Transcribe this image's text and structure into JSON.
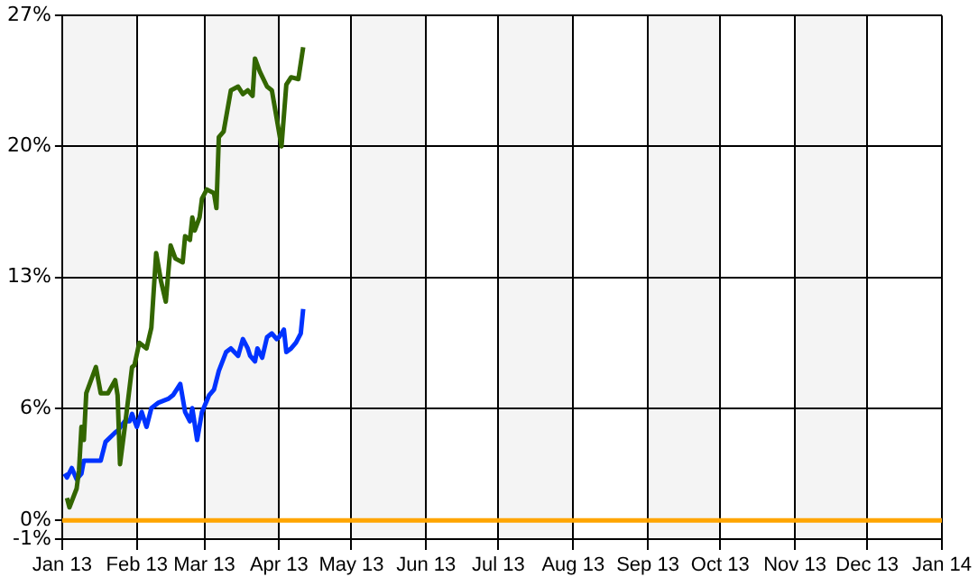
{
  "chart_data": {
    "type": "line",
    "xlim": [
      "2013-01-01",
      "2014-01-01"
    ],
    "xticks": [
      {
        "value": "2013-01-01",
        "label": "Jan 13"
      },
      {
        "value": "2013-02-01",
        "label": "Feb 13"
      },
      {
        "value": "2013-03-01",
        "label": "Mar 13"
      },
      {
        "value": "2013-04-01",
        "label": "Apr 13"
      },
      {
        "value": "2013-05-01",
        "label": "May 13"
      },
      {
        "value": "2013-06-01",
        "label": "Jun 13"
      },
      {
        "value": "2013-07-01",
        "label": "Jul 13"
      },
      {
        "value": "2013-08-01",
        "label": "Aug 13"
      },
      {
        "value": "2013-09-01",
        "label": "Sep 13"
      },
      {
        "value": "2013-10-01",
        "label": "Oct 13"
      },
      {
        "value": "2013-11-01",
        "label": "Nov 13"
      },
      {
        "value": "2013-12-01",
        "label": "Dec 13"
      },
      {
        "value": "2014-01-01",
        "label": "Jan 14"
      }
    ],
    "ylim": [
      -1,
      27
    ],
    "yticks": [
      {
        "value": -1,
        "label": "-1%"
      },
      {
        "value": 0,
        "label": "0%"
      },
      {
        "value": 6,
        "label": "6%"
      },
      {
        "value": 13,
        "label": "13%"
      },
      {
        "value": 20,
        "label": "20%"
      },
      {
        "value": 27,
        "label": "27%"
      }
    ],
    "grid": true,
    "legend": false,
    "marker": "none",
    "line_style": "solid",
    "bands": [
      {
        "axis": "x",
        "from": "2013-01-01",
        "to": "2013-02-01",
        "color": "#f4f4f4"
      },
      {
        "axis": "x",
        "from": "2013-03-01",
        "to": "2013-04-01",
        "color": "#f4f4f4"
      },
      {
        "axis": "x",
        "from": "2013-05-01",
        "to": "2013-06-01",
        "color": "#f4f4f4"
      },
      {
        "axis": "x",
        "from": "2013-07-01",
        "to": "2013-08-01",
        "color": "#f4f4f4"
      },
      {
        "axis": "x",
        "from": "2013-09-01",
        "to": "2013-10-01",
        "color": "#f4f4f4"
      },
      {
        "axis": "x",
        "from": "2013-11-01",
        "to": "2013-12-01",
        "color": "#f4f4f4"
      }
    ],
    "ref_lines": [
      {
        "axis": "y",
        "value": 0,
        "color": "#ffa500"
      }
    ],
    "series": [
      {
        "color": "#336600",
        "x": [
          "2013-01-03",
          "2013-01-04",
          "2013-01-07",
          "2013-01-08",
          "2013-01-09",
          "2013-01-10",
          "2013-01-11",
          "2013-01-13",
          "2013-01-15",
          "2013-01-17",
          "2013-01-20",
          "2013-01-23",
          "2013-01-24",
          "2013-01-25",
          "2013-01-27",
          "2013-01-30",
          "2013-01-31",
          "2013-02-02",
          "2013-02-05",
          "2013-02-07",
          "2013-02-09",
          "2013-02-11",
          "2013-02-13",
          "2013-02-15",
          "2013-02-17",
          "2013-02-20",
          "2013-02-21",
          "2013-02-23",
          "2013-02-24",
          "2013-02-25",
          "2013-02-27",
          "2013-02-28",
          "2013-03-02",
          "2013-03-05",
          "2013-03-06",
          "2013-03-07",
          "2013-03-09",
          "2013-03-12",
          "2013-03-15",
          "2013-03-17",
          "2013-03-19",
          "2013-03-21",
          "2013-03-22",
          "2013-03-24",
          "2013-03-27",
          "2013-03-29",
          "2013-04-02",
          "2013-04-04",
          "2013-04-06",
          "2013-04-09",
          "2013-04-11"
        ],
        "values": [
          1.2,
          0.7,
          1.7,
          2.7,
          5.0,
          4.3,
          6.8,
          7.5,
          8.2,
          6.8,
          6.8,
          7.5,
          6.7,
          3.0,
          5.0,
          8.2,
          8.3,
          9.5,
          9.2,
          10.3,
          14.3,
          12.8,
          11.7,
          14.7,
          14.0,
          13.8,
          15.2,
          15.0,
          16.2,
          15.5,
          16.2,
          17.2,
          17.7,
          17.5,
          16.7,
          20.5,
          20.8,
          23.0,
          23.2,
          22.8,
          23.0,
          22.7,
          24.7,
          24.0,
          23.2,
          23.0,
          20.0,
          23.3,
          23.7,
          23.6,
          25.3
        ]
      },
      {
        "color": "#0033ff",
        "x": [
          "2013-01-02",
          "2013-01-03",
          "2013-01-05",
          "2013-01-07",
          "2013-01-09",
          "2013-01-10",
          "2013-01-13",
          "2013-01-17",
          "2013-01-19",
          "2013-01-23",
          "2013-01-24",
          "2013-01-27",
          "2013-01-29",
          "2013-01-30",
          "2013-02-01",
          "2013-02-03",
          "2013-02-05",
          "2013-02-07",
          "2013-02-10",
          "2013-02-14",
          "2013-02-16",
          "2013-02-19",
          "2013-02-21",
          "2013-02-23",
          "2013-02-24",
          "2013-02-26",
          "2013-02-28",
          "2013-03-03",
          "2013-03-05",
          "2013-03-07",
          "2013-03-10",
          "2013-03-12",
          "2013-03-15",
          "2013-03-17",
          "2013-03-19",
          "2013-03-20",
          "2013-03-22",
          "2013-03-23",
          "2013-03-25",
          "2013-03-27",
          "2013-03-29",
          "2013-03-31",
          "2013-04-01",
          "2013-04-03",
          "2013-04-04",
          "2013-04-06",
          "2013-04-08",
          "2013-04-10",
          "2013-04-11"
        ],
        "values": [
          2.5,
          2.3,
          2.8,
          2.2,
          2.5,
          3.2,
          3.2,
          3.2,
          4.2,
          4.7,
          4.8,
          5.3,
          5.3,
          5.7,
          5.0,
          5.8,
          5.0,
          6.0,
          6.3,
          6.5,
          6.7,
          7.3,
          5.8,
          5.3,
          6.0,
          4.3,
          5.8,
          6.7,
          7.0,
          8.0,
          9.0,
          9.2,
          8.8,
          9.7,
          9.2,
          8.8,
          8.5,
          9.2,
          8.7,
          9.8,
          10.0,
          9.7,
          9.8,
          10.2,
          9.0,
          9.2,
          9.5,
          10.0,
          11.3
        ]
      }
    ]
  }
}
